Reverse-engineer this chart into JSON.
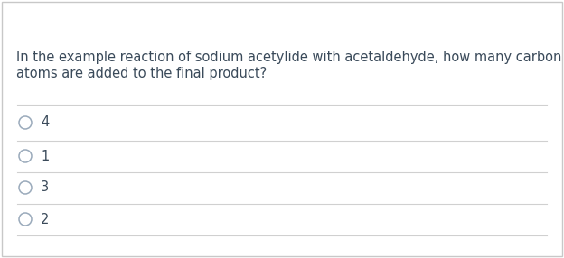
{
  "question_line1": "In the example reaction of sodium acetylide with acetaldehyde, how many carbon",
  "question_line2": "atoms are added to the final product?",
  "options": [
    "4",
    "1",
    "3",
    "2"
  ],
  "bg_color": "#ffffff",
  "text_color": "#3a4a5a",
  "divider_color": "#d0d0d0",
  "question_fontsize": 10.5,
  "option_fontsize": 10.5,
  "circle_edge_color": "#9aaabb",
  "outer_border_color": "#c8c8c8"
}
